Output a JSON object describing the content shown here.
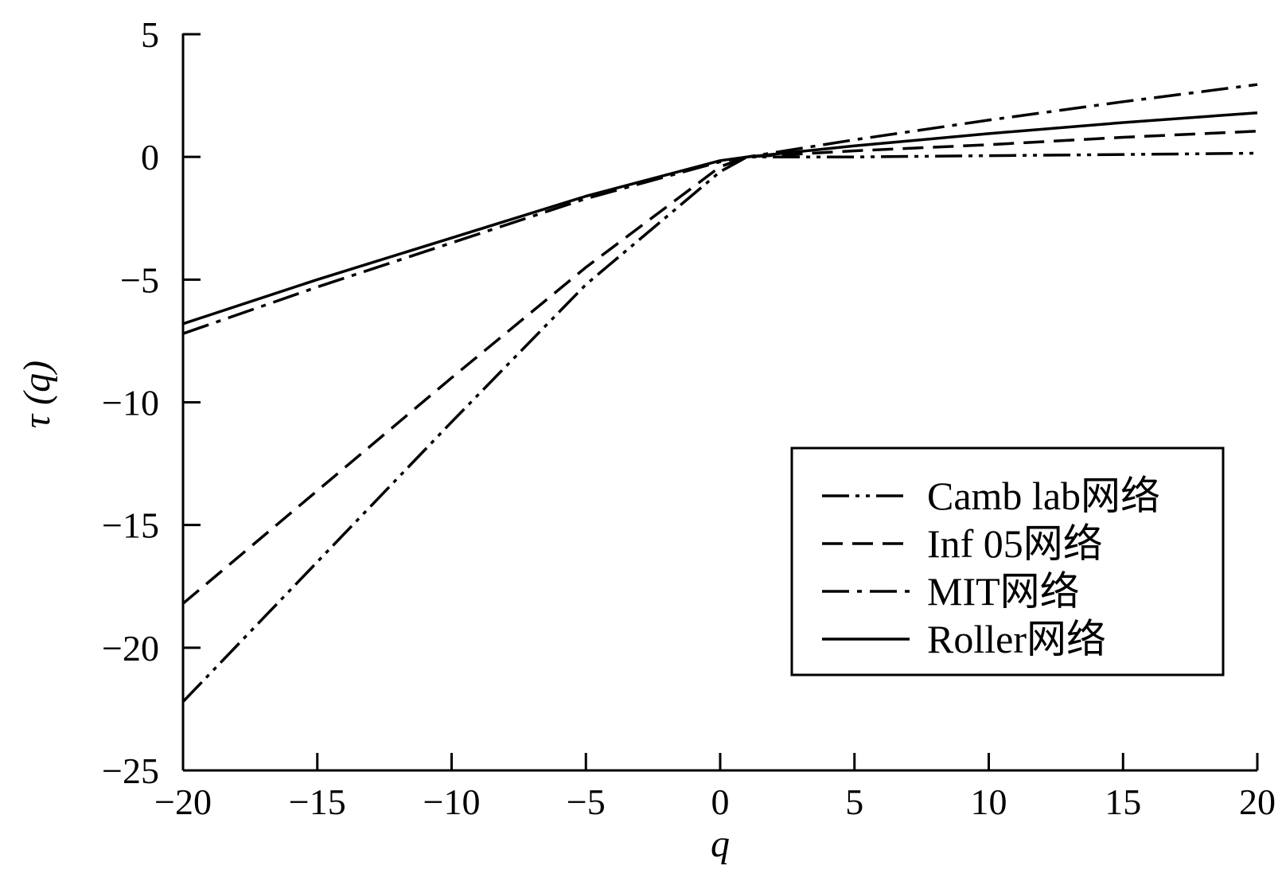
{
  "chart_data": {
    "type": "line",
    "xlabel": "q",
    "ylabel": "τ (q)",
    "xlim": [
      -20,
      20
    ],
    "ylim": [
      -25,
      5
    ],
    "xticks": [
      -20,
      -15,
      -10,
      -5,
      0,
      5,
      10,
      15,
      20
    ],
    "yticks": [
      5,
      0,
      -5,
      -10,
      -15,
      -20,
      -25
    ],
    "xtick_labels": [
      "−20",
      "−15",
      "−10",
      "−5",
      "0",
      "5",
      "10",
      "15",
      "20"
    ],
    "ytick_labels": [
      "5",
      "0",
      "−5",
      "−10",
      "−15",
      "−20",
      "−25"
    ],
    "grid": false,
    "legend_position": "lower-right",
    "x": [
      -20,
      -15,
      -10,
      -5,
      0,
      1,
      5,
      10,
      15,
      20
    ],
    "series": [
      {
        "name": "Camb lab网络",
        "dash": "dash-dot-dot",
        "values": [
          -22.2,
          -16.5,
          -10.8,
          -5.2,
          -0.6,
          0.0,
          0.0,
          0.05,
          0.1,
          0.15
        ]
      },
      {
        "name": "Inf 05网络",
        "dash": "dashed",
        "values": [
          -18.2,
          -13.6,
          -9.0,
          -4.5,
          -0.4,
          0.0,
          0.25,
          0.5,
          0.8,
          1.05
        ]
      },
      {
        "name": "MIT网络",
        "dash": "dash-dot",
        "values": [
          -7.2,
          -5.3,
          -3.5,
          -1.7,
          -0.2,
          0.0,
          0.7,
          1.5,
          2.25,
          2.95
        ]
      },
      {
        "name": "Roller网络",
        "dash": "solid",
        "values": [
          -6.8,
          -5.0,
          -3.3,
          -1.6,
          -0.15,
          0.0,
          0.45,
          0.95,
          1.4,
          1.8
        ]
      }
    ]
  }
}
